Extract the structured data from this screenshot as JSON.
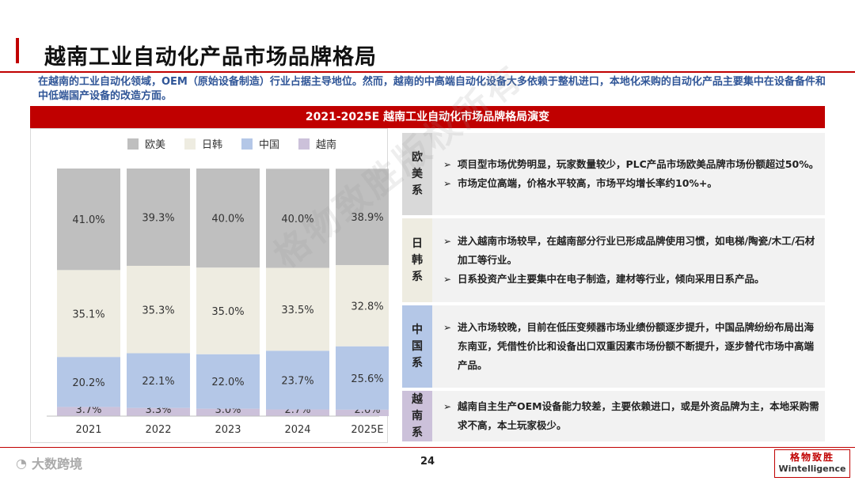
{
  "page": {
    "title": "越南工业自动化产品市场品牌格局",
    "summary": "在越南的工业自动化领域，OEM（原始设备制造）行业占据主导地位。然而，越南的中高端自动化设备大多依赖于整机进口，本地化采购的自动化产品主要集中在设备备件和中低端国产设备的改造方面。",
    "panel_title": "2021-2025E 越南工业自动化市场品牌格局演变",
    "page_number": "24",
    "watermark": "格物致胜版权所有",
    "footer_brand": "大数跨境",
    "logo_cn": "格物致胜",
    "logo_en": "Wintelligence"
  },
  "chart_data": {
    "type": "bar",
    "stacked": true,
    "percent": true,
    "categories": [
      "2021",
      "2022",
      "2023",
      "2024",
      "2025E"
    ],
    "series": [
      {
        "name": "越南",
        "color": "#ccc1da",
        "values": [
          3.7,
          3.3,
          3.0,
          2.7,
          2.6
        ],
        "labels": [
          "3.7%",
          "3.3%",
          "3.0%",
          "2.7%",
          "2.6%"
        ]
      },
      {
        "name": "中国",
        "color": "#b4c7e7",
        "values": [
          20.2,
          22.1,
          22.0,
          23.7,
          25.6
        ],
        "labels": [
          "20.2%",
          "22.1%",
          "22.0%",
          "23.7%",
          "25.6%"
        ]
      },
      {
        "name": "日韩",
        "color": "#eeece1",
        "values": [
          35.1,
          35.3,
          35.0,
          33.5,
          32.8
        ],
        "labels": [
          "35.1%",
          "35.3%",
          "35.0%",
          "33.5%",
          "32.8%"
        ]
      },
      {
        "name": "欧美",
        "color": "#bfbfbf",
        "values": [
          41.0,
          39.3,
          40.0,
          40.0,
          38.9
        ],
        "labels": [
          "41.0%",
          "39.3%",
          "40.0%",
          "40.0%",
          "38.9%"
        ]
      }
    ],
    "legend": [
      "欧美",
      "日韩",
      "中国",
      "越南"
    ],
    "legend_position": "top",
    "ylim": [
      0,
      100
    ]
  },
  "categories": [
    {
      "label": "欧美系",
      "color": "#d9d9d9",
      "bullets": [
        "项目型市场优势明显，玩家数量较少，PLC产品市场欧美品牌市场份额超过50%。",
        "市场定位高端，价格水平较高，市场平均增长率约10%+。"
      ]
    },
    {
      "label": "日韩系",
      "color": "#eeece1",
      "bullets": [
        "进入越南市场较早，在越南部分行业已形成品牌使用习惯，如电梯/陶瓷/木工/石材加工等行业。",
        "日系投资产业主要集中在电子制造，建材等行业，倾向采用日系产品。"
      ]
    },
    {
      "label": "中国系",
      "color": "#b4c7e7",
      "bullets": [
        "进入市场较晚，目前在低压变频器市场业绩份额逐步提升，中国品牌纷纷布局出海东南亚，凭借性价比和设备出口双重因素市场份额不断提升，逐步替代市场中高端产品。"
      ]
    },
    {
      "label": "越南系",
      "color": "#ccc1da",
      "bullets": [
        "越南自主生产OEM设备能力较差，主要依赖进口，或是外资品牌为主，本地采购需求不高，本土玩家极少。"
      ]
    }
  ],
  "icons": {
    "bullet": "arrow-bullet-icon",
    "arrow_glyph": "➢"
  }
}
